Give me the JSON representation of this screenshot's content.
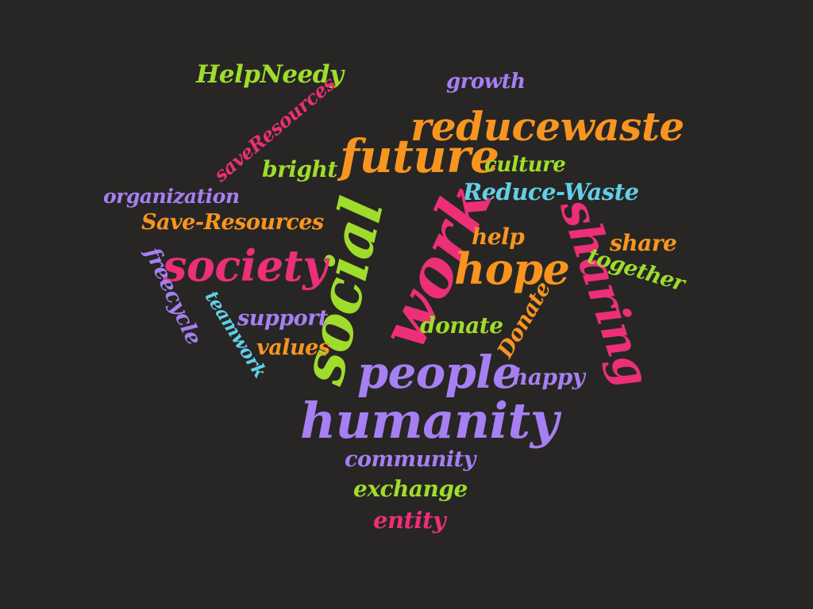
{
  "palette": {
    "background": "#272624",
    "green": "#9fdc2c",
    "purple": "#a67ff3",
    "pink": "#ec2f77",
    "orange": "#f79520",
    "cyan": "#62cfe8"
  },
  "words": [
    {
      "id": "helpneedy",
      "text": "HelpNeedy",
      "color": "green"
    },
    {
      "id": "saveresources",
      "text": "saveResources",
      "color": "pink"
    },
    {
      "id": "growth",
      "text": "growth",
      "color": "purple"
    },
    {
      "id": "reducewaste",
      "text": "reducewaste",
      "color": "orange"
    },
    {
      "id": "future",
      "text": "future",
      "color": "orange"
    },
    {
      "id": "bright",
      "text": "bright",
      "color": "green"
    },
    {
      "id": "culture",
      "text": "culture",
      "color": "green"
    },
    {
      "id": "organization",
      "text": "organization",
      "color": "purple"
    },
    {
      "id": "reduce-waste",
      "text": "Reduce-Waste",
      "color": "cyan"
    },
    {
      "id": "save-resources",
      "text": "Save-Resources",
      "color": "orange"
    },
    {
      "id": "social",
      "text": "social",
      "color": "green"
    },
    {
      "id": "work",
      "text": "work",
      "color": "pink"
    },
    {
      "id": "help",
      "text": "help",
      "color": "orange"
    },
    {
      "id": "sharing",
      "text": "sharing",
      "color": "pink"
    },
    {
      "id": "share",
      "text": "share",
      "color": "orange"
    },
    {
      "id": "together",
      "text": "together",
      "color": "green"
    },
    {
      "id": "society",
      "text": "society",
      "color": "pink"
    },
    {
      "id": "hope",
      "text": "hope",
      "color": "orange"
    },
    {
      "id": "freecycle",
      "text": "freecycle",
      "color": "purple"
    },
    {
      "id": "teamwork",
      "text": "teamwork",
      "color": "cyan"
    },
    {
      "id": "support",
      "text": "support",
      "color": "purple"
    },
    {
      "id": "donate-lower",
      "text": "donate",
      "color": "green"
    },
    {
      "id": "donate-upper",
      "text": "Donate",
      "color": "orange"
    },
    {
      "id": "values",
      "text": "values",
      "color": "orange"
    },
    {
      "id": "people",
      "text": "people",
      "color": "purple"
    },
    {
      "id": "happy",
      "text": "happy",
      "color": "purple"
    },
    {
      "id": "humanity",
      "text": "humanity",
      "color": "purple"
    },
    {
      "id": "community",
      "text": "community",
      "color": "purple"
    },
    {
      "id": "exchange",
      "text": "exchange",
      "color": "green"
    },
    {
      "id": "entity",
      "text": "entity",
      "color": "pink"
    }
  ]
}
